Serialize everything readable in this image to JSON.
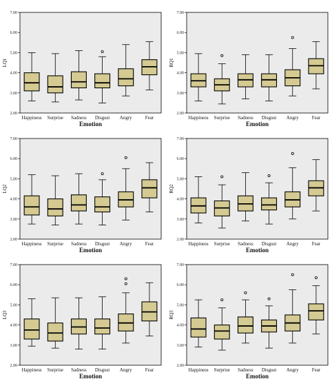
{
  "colors": {
    "plot_bg": "#ebebeb",
    "box_fill": "#d4ca92",
    "stroke": "#000000"
  },
  "chart_data": [
    {
      "type": "boxplot",
      "ylabel": "LQ1",
      "xlabel": "Emotion",
      "ylim": [
        2.0,
        7.0
      ],
      "yticks": [
        "2.00",
        "3.00",
        "4.00",
        "5.00",
        "6.00",
        "7.00"
      ],
      "categories": [
        "Happiness",
        "Surprise",
        "Sadness",
        "Disgust",
        "Angry",
        "Fear"
      ],
      "boxes": [
        {
          "min": 2.6,
          "q1": 3.1,
          "median": 3.5,
          "q3": 4.0,
          "max": 5.0,
          "outliers": []
        },
        {
          "min": 2.55,
          "q1": 3.0,
          "median": 3.3,
          "q3": 3.85,
          "max": 4.95,
          "outliers": []
        },
        {
          "min": 2.65,
          "q1": 3.25,
          "median": 3.55,
          "q3": 4.05,
          "max": 5.1,
          "outliers": []
        },
        {
          "min": 2.5,
          "q1": 3.25,
          "median": 3.5,
          "q3": 3.95,
          "max": 4.8,
          "outliers": [
            5.05
          ]
        },
        {
          "min": 2.85,
          "q1": 3.35,
          "median": 3.7,
          "q3": 4.2,
          "max": 5.4,
          "outliers": []
        },
        {
          "min": 3.15,
          "q1": 3.9,
          "median": 4.3,
          "q3": 4.65,
          "max": 5.55,
          "outliers": []
        }
      ]
    },
    {
      "type": "boxplot",
      "ylabel": "RQ1",
      "xlabel": "Emotion",
      "ylim": [
        2.0,
        7.0
      ],
      "yticks": [
        "2.00",
        "3.00",
        "4.00",
        "5.00",
        "6.00",
        "7.00"
      ],
      "categories": [
        "Happiness",
        "Surprise",
        "Sadness",
        "Disgust",
        "Angry",
        "Fear"
      ],
      "boxes": [
        {
          "min": 2.6,
          "q1": 3.3,
          "median": 3.6,
          "q3": 3.95,
          "max": 4.95,
          "outliers": []
        },
        {
          "min": 2.45,
          "q1": 3.1,
          "median": 3.4,
          "q3": 3.7,
          "max": 4.45,
          "outliers": [
            4.85
          ]
        },
        {
          "min": 2.7,
          "q1": 3.3,
          "median": 3.65,
          "q3": 3.95,
          "max": 4.9,
          "outliers": []
        },
        {
          "min": 2.6,
          "q1": 3.3,
          "median": 3.65,
          "q3": 3.95,
          "max": 4.9,
          "outliers": []
        },
        {
          "min": 2.85,
          "q1": 3.35,
          "median": 3.75,
          "q3": 4.15,
          "max": 5.2,
          "outliers": [
            5.75
          ]
        },
        {
          "min": 3.2,
          "q1": 3.95,
          "median": 4.35,
          "q3": 4.7,
          "max": 5.55,
          "outliers": []
        }
      ]
    },
    {
      "type": "boxplot",
      "ylabel": "LQ2",
      "xlabel": "Emotion",
      "ylim": [
        2.0,
        7.0
      ],
      "yticks": [
        "2.00",
        "3.00",
        "4.00",
        "5.00",
        "6.00",
        "7.00"
      ],
      "categories": [
        "Happiness",
        "Surprise",
        "Sadness",
        "Disgust",
        "Angry",
        "Fear"
      ],
      "boxes": [
        {
          "min": 2.75,
          "q1": 3.2,
          "median": 3.6,
          "q3": 4.15,
          "max": 5.2,
          "outliers": []
        },
        {
          "min": 2.7,
          "q1": 3.15,
          "median": 3.5,
          "q3": 4.0,
          "max": 5.15,
          "outliers": []
        },
        {
          "min": 2.75,
          "q1": 3.4,
          "median": 3.7,
          "q3": 4.2,
          "max": 5.25,
          "outliers": []
        },
        {
          "min": 2.7,
          "q1": 3.35,
          "median": 3.6,
          "q3": 4.1,
          "max": 4.95,
          "outliers": [
            5.25
          ]
        },
        {
          "min": 2.95,
          "q1": 3.6,
          "median": 3.95,
          "q3": 4.35,
          "max": 5.5,
          "outliers": [
            6.05
          ]
        },
        {
          "min": 3.35,
          "q1": 4.05,
          "median": 4.55,
          "q3": 4.95,
          "max": 5.8,
          "outliers": []
        }
      ]
    },
    {
      "type": "boxplot",
      "ylabel": "RQ2",
      "xlabel": "Emotion",
      "ylim": [
        2.0,
        7.0
      ],
      "yticks": [
        "2.00",
        "3.00",
        "4.00",
        "5.00",
        "6.00",
        "7.00"
      ],
      "categories": [
        "Happiness",
        "Surprise",
        "Sadness",
        "Disgust",
        "Angry",
        "Fear"
      ],
      "boxes": [
        {
          "min": 2.8,
          "q1": 3.3,
          "median": 3.65,
          "q3": 4.05,
          "max": 5.1,
          "outliers": []
        },
        {
          "min": 2.55,
          "q1": 3.15,
          "median": 3.55,
          "q3": 3.9,
          "max": 4.7,
          "outliers": [
            5.1
          ]
        },
        {
          "min": 2.9,
          "q1": 3.4,
          "median": 3.75,
          "q3": 4.15,
          "max": 5.3,
          "outliers": []
        },
        {
          "min": 2.75,
          "q1": 3.45,
          "median": 3.7,
          "q3": 4.05,
          "max": 4.8,
          "outliers": [
            5.15
          ]
        },
        {
          "min": 3.0,
          "q1": 3.6,
          "median": 3.95,
          "q3": 4.35,
          "max": 5.55,
          "outliers": [
            6.25
          ]
        },
        {
          "min": 3.4,
          "q1": 4.15,
          "median": 4.55,
          "q3": 4.9,
          "max": 5.95,
          "outliers": []
        }
      ]
    },
    {
      "type": "boxplot",
      "ylabel": "LQ3",
      "xlabel": "Emotion",
      "ylim": [
        2.0,
        7.0
      ],
      "yticks": [
        "2.00",
        "3.00",
        "4.00",
        "5.00",
        "6.00",
        "7.00"
      ],
      "categories": [
        "Happiness",
        "Surprise",
        "Sadness",
        "Disgust",
        "Angry",
        "Fear"
      ],
      "boxes": [
        {
          "min": 2.95,
          "q1": 3.3,
          "median": 3.75,
          "q3": 4.3,
          "max": 5.3,
          "outliers": []
        },
        {
          "min": 2.85,
          "q1": 3.2,
          "median": 3.6,
          "q3": 4.1,
          "max": 5.35,
          "outliers": []
        },
        {
          "min": 2.8,
          "q1": 3.55,
          "median": 3.9,
          "q3": 4.3,
          "max": 5.35,
          "outliers": []
        },
        {
          "min": 2.8,
          "q1": 3.55,
          "median": 3.85,
          "q3": 4.3,
          "max": 5.4,
          "outliers": []
        },
        {
          "min": 3.1,
          "q1": 3.7,
          "median": 4.1,
          "q3": 4.55,
          "max": 5.6,
          "outliers": [
            6.3,
            6.05
          ]
        },
        {
          "min": 3.45,
          "q1": 4.2,
          "median": 4.65,
          "q3": 5.15,
          "max": 6.1,
          "outliers": []
        }
      ]
    },
    {
      "type": "boxplot",
      "ylabel": "RQ3",
      "xlabel": "Emotion",
      "ylim": [
        2.0,
        7.0
      ],
      "yticks": [
        "2.00",
        "3.00",
        "4.00",
        "5.00",
        "6.00",
        "7.00"
      ],
      "categories": [
        "Happiness",
        "Surprise",
        "Sadness",
        "Disgust",
        "Angry",
        "Fear"
      ],
      "boxes": [
        {
          "min": 2.9,
          "q1": 3.4,
          "median": 3.8,
          "q3": 4.35,
          "max": 5.25,
          "outliers": []
        },
        {
          "min": 2.75,
          "q1": 3.3,
          "median": 3.7,
          "q3": 4.0,
          "max": 4.85,
          "outliers": [
            5.25
          ]
        },
        {
          "min": 3.1,
          "q1": 3.6,
          "median": 3.95,
          "q3": 4.4,
          "max": 5.25,
          "outliers": [
            5.6
          ]
        },
        {
          "min": 2.85,
          "q1": 3.65,
          "median": 3.95,
          "q3": 4.25,
          "max": 4.95,
          "outliers": [
            5.3
          ]
        },
        {
          "min": 3.1,
          "q1": 3.7,
          "median": 4.1,
          "q3": 4.5,
          "max": 5.75,
          "outliers": [
            6.5
          ]
        },
        {
          "min": 3.55,
          "q1": 4.25,
          "median": 4.7,
          "q3": 5.05,
          "max": 5.95,
          "outliers": [
            6.35
          ]
        }
      ]
    }
  ]
}
